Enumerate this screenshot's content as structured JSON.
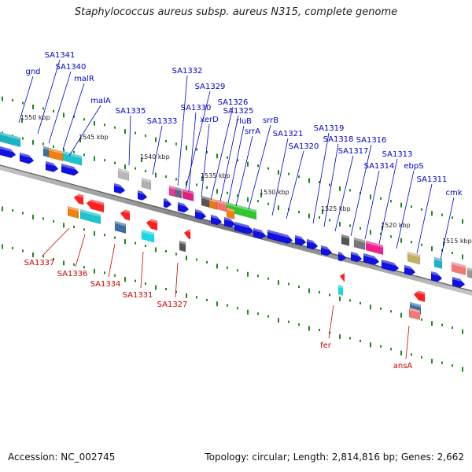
{
  "title": "Staphylococcus aureus subsp. aureus N315, complete genome",
  "footer": {
    "accession": "Accession: NC_002745",
    "summary": "Topology: circular; Length: 2,814,816 bp; Genes: 2,662"
  },
  "colors": {
    "forward_label": "#0000cc",
    "reverse_label": "#cc0000",
    "backbone": "#777777",
    "gc_dots": "#1a8a1a",
    "cds_blue": "#1010e0"
  },
  "scale_ticks": [
    "1550 kbp",
    "1545 kbp",
    "1540 kbp",
    "1535 kbp",
    "1530 kbp",
    "1525 kbp",
    "1520 kbp",
    "1515 kbp"
  ],
  "forward_genes": [
    "gnd",
    "SA1341",
    "SA1340",
    "malR",
    "malA",
    "SA1335",
    "SA1333",
    "SA1332",
    "SA1329",
    "SA1330",
    "xerD",
    "SA1326",
    "SA1325",
    "rluB",
    "srrA",
    "srrB",
    "SA1321",
    "SA1320",
    "SA1319",
    "SA1318",
    "SA1317",
    "SA1316",
    "SA1314",
    "SA1313",
    "ebpS",
    "SA1311",
    "cmk"
  ],
  "reverse_genes": [
    "SA1337",
    "SA1336",
    "SA1334",
    "SA1331",
    "SA1327",
    "fer",
    "ansA"
  ]
}
